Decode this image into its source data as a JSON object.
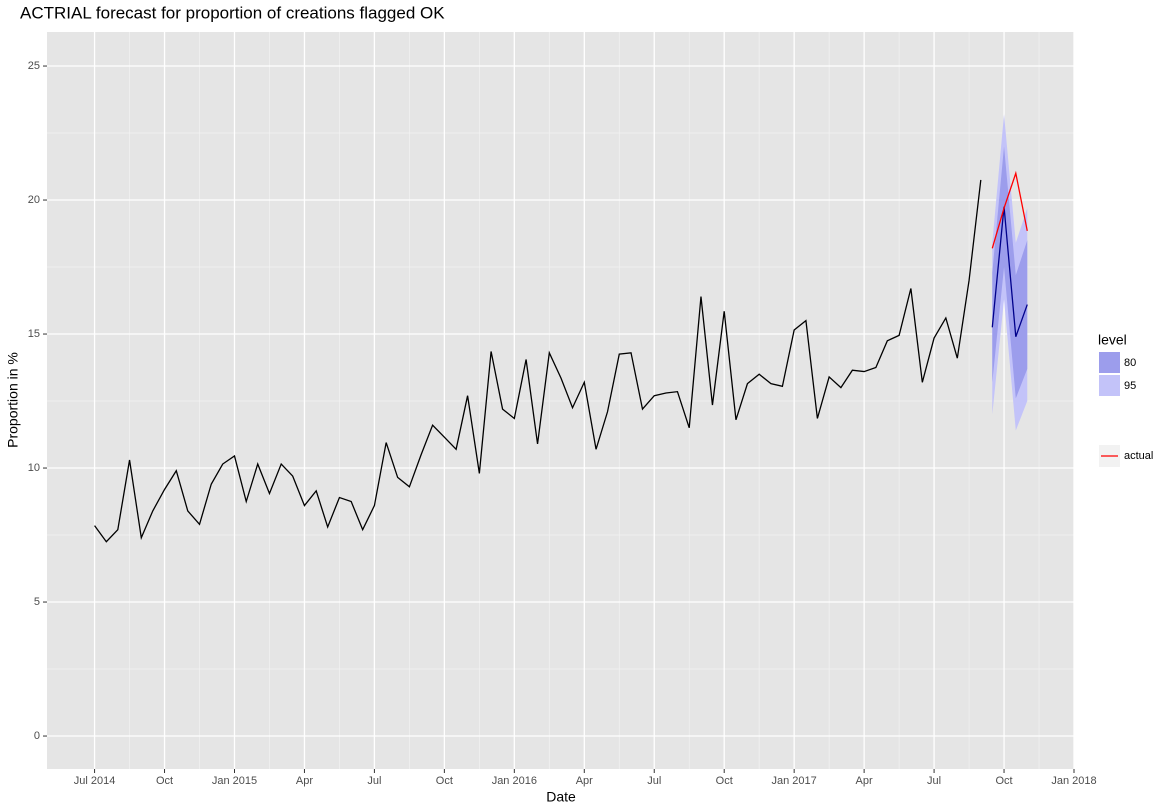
{
  "chart_data": {
    "type": "line",
    "title": "ACTRIAL forecast for proportion of creations flagged OK",
    "x_label": "Date",
    "y_label": "Proportion in %",
    "xlim": [
      2014.33,
      2018.0
    ],
    "ylim": [
      -1.23,
      26.27
    ],
    "xticks": [
      {
        "value": 2014.5,
        "label": "Jul 2014"
      },
      {
        "value": 2014.75,
        "label": "Oct"
      },
      {
        "value": 2015.0,
        "label": "Jan 2015"
      },
      {
        "value": 2015.25,
        "label": "Apr"
      },
      {
        "value": 2015.5,
        "label": "Jul"
      },
      {
        "value": 2015.75,
        "label": "Oct"
      },
      {
        "value": 2016.0,
        "label": "Jan 2016"
      },
      {
        "value": 2016.25,
        "label": "Apr"
      },
      {
        "value": 2016.5,
        "label": "Jul"
      },
      {
        "value": 2016.75,
        "label": "Oct"
      },
      {
        "value": 2017.0,
        "label": "Jan 2017"
      },
      {
        "value": 2017.25,
        "label": "Apr"
      },
      {
        "value": 2017.5,
        "label": "Jul"
      },
      {
        "value": 2017.75,
        "label": "Oct"
      },
      {
        "value": 2018.0,
        "label": "Jan 2018"
      }
    ],
    "yticks": [
      0,
      5,
      10,
      15,
      20,
      25
    ],
    "grid": true,
    "legend_position": "right",
    "history": {
      "color": "#000000",
      "x": [
        2014.5,
        2014.542,
        2014.583,
        2014.625,
        2014.667,
        2014.708,
        2014.75,
        2014.792,
        2014.833,
        2014.875,
        2014.917,
        2014.958,
        2015.0,
        2015.042,
        2015.083,
        2015.125,
        2015.167,
        2015.208,
        2015.25,
        2015.292,
        2015.333,
        2015.375,
        2015.417,
        2015.458,
        2015.5,
        2015.542,
        2015.583,
        2015.625,
        2015.667,
        2015.708,
        2015.75,
        2015.792,
        2015.833,
        2015.875,
        2015.917,
        2015.958,
        2016.0,
        2016.042,
        2016.083,
        2016.125,
        2016.167,
        2016.208,
        2016.25,
        2016.292,
        2016.333,
        2016.375,
        2016.417,
        2016.458,
        2016.5,
        2016.542,
        2016.583,
        2016.625,
        2016.667,
        2016.708,
        2016.75,
        2016.792,
        2016.833,
        2016.875,
        2016.917,
        2016.958,
        2017.0,
        2017.042,
        2017.083,
        2017.125,
        2017.167,
        2017.208,
        2017.25,
        2017.292,
        2017.333,
        2017.375,
        2017.417,
        2017.458,
        2017.5,
        2017.542,
        2017.583,
        2017.625,
        2017.667
      ],
      "values": [
        7.85,
        7.25,
        7.7,
        10.3,
        7.4,
        8.4,
        9.2,
        9.9,
        8.4,
        7.9,
        9.4,
        10.15,
        10.45,
        8.75,
        10.15,
        9.05,
        10.15,
        9.7,
        8.6,
        9.15,
        7.8,
        8.9,
        8.75,
        7.7,
        8.6,
        10.95,
        9.65,
        9.3,
        10.5,
        11.6,
        11.15,
        10.7,
        12.7,
        9.8,
        14.35,
        12.2,
        11.85,
        14.05,
        10.9,
        14.3,
        13.35,
        12.25,
        13.2,
        10.7,
        12.1,
        14.25,
        14.3,
        12.2,
        12.7,
        12.8,
        12.85,
        11.5,
        16.4,
        12.35,
        15.85,
        11.8,
        13.15,
        13.5,
        13.15,
        13.05,
        15.15,
        15.5,
        11.85,
        13.4,
        13.0,
        13.65,
        13.6,
        13.75,
        14.75,
        14.95,
        16.7,
        13.2,
        14.85,
        15.6,
        14.1,
        17.0,
        20.75
      ]
    },
    "forecast": {
      "x": [
        2017.708,
        2017.75,
        2017.792,
        2017.833
      ],
      "color": "#00008b",
      "values": [
        15.25,
        19.75,
        14.9,
        16.1
      ],
      "level_title": "level",
      "bands": [
        {
          "level": 95,
          "color": "#c3c3f9",
          "lower": [
            12.0,
            16.3,
            11.4,
            12.5
          ],
          "upper": [
            18.4,
            23.2,
            18.4,
            19.7
          ]
        },
        {
          "level": 80,
          "color": "#9c9dec",
          "lower": [
            13.2,
            17.5,
            12.6,
            13.7
          ],
          "upper": [
            17.3,
            22.0,
            17.2,
            18.5
          ]
        }
      ]
    },
    "actual": {
      "name": "actual",
      "color": "#ff0000",
      "values": [
        18.2,
        19.7,
        21.0,
        18.85
      ]
    }
  }
}
